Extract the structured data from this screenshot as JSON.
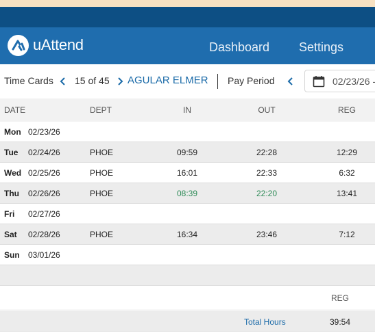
{
  "app": {
    "name": "uAttend"
  },
  "nav": {
    "dashboard": "Dashboard",
    "settings": "Settings"
  },
  "toolbar": {
    "section": "Time Cards",
    "counter": "15 of 45",
    "employee": "AGULAR ELMER",
    "pay_period_label": "Pay Period",
    "date_value": "02/23/26 -"
  },
  "columns": {
    "date": "DATE",
    "dept": "DEPT",
    "in": "IN",
    "out": "OUT",
    "reg": "REG"
  },
  "rows": [
    {
      "day": "Mon",
      "date": "02/23/26",
      "dept": "",
      "in": "",
      "out": "",
      "reg": ""
    },
    {
      "day": "Tue",
      "date": "02/24/26",
      "dept": "PHOE",
      "in": "09:59",
      "out": "22:28",
      "reg": "12:29"
    },
    {
      "day": "Wed",
      "date": "02/25/26",
      "dept": "PHOE",
      "in": "16:01",
      "out": "22:33",
      "reg": "6:32"
    },
    {
      "day": "Thu",
      "date": "02/26/26",
      "dept": "PHOE",
      "in": "08:39",
      "out": "22:20",
      "reg": "13:41"
    },
    {
      "day": "Fri",
      "date": "02/27/26",
      "dept": "",
      "in": "",
      "out": "",
      "reg": ""
    },
    {
      "day": "Sat",
      "date": "02/28/26",
      "dept": "PHOE",
      "in": "16:34",
      "out": "23:46",
      "reg": "7:12"
    },
    {
      "day": "Sun",
      "date": "03/01/26",
      "dept": "",
      "in": "",
      "out": "",
      "reg": ""
    }
  ],
  "summary": {
    "reg_header": "REG",
    "total_label": "Total Hours",
    "total_reg": "39:54"
  },
  "colors": {
    "nav_blue": "#1f6dae",
    "dark_blue": "#0d4f84",
    "link_blue": "#1a6aa8",
    "green_time": "#2e8b57"
  }
}
